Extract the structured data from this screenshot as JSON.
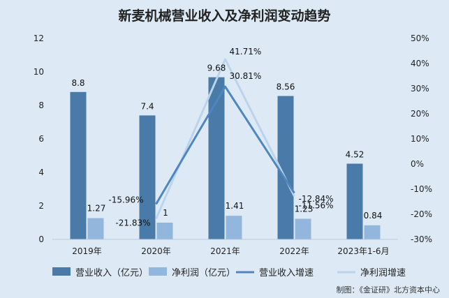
{
  "chart_data": {
    "type": "bar",
    "title": "新麦机械营业收入及净利润变动趋势",
    "categories": [
      "2019年",
      "2020年",
      "2021年",
      "2022年",
      "2023年1-6月"
    ],
    "y_left": {
      "ylim": [
        0,
        12
      ],
      "ticks": [
        "0",
        "2",
        "4",
        "6",
        "8",
        "10",
        "12"
      ]
    },
    "y_right": {
      "ylim": [
        -30,
        50
      ],
      "ticks": [
        "-30%",
        "-20%",
        "-10%",
        "0%",
        "10%",
        "20%",
        "30%",
        "40%",
        "50%"
      ]
    },
    "series": [
      {
        "name": "营业收入（亿元）",
        "kind": "bar",
        "axis": "left",
        "color": "#4a7aa8",
        "values": [
          8.8,
          7.4,
          9.68,
          8.56,
          4.52
        ],
        "labels": [
          "8.8",
          "7.4",
          "9.68",
          "8.56",
          "4.52"
        ]
      },
      {
        "name": "净利润（亿元）",
        "kind": "bar",
        "axis": "left",
        "color": "#93b6dd",
        "values": [
          1.27,
          1,
          1.41,
          1.23,
          0.84
        ],
        "labels": [
          "1.27",
          "1",
          "1.41",
          "1.23",
          "0.84"
        ]
      },
      {
        "name": "营业收入增速",
        "kind": "line",
        "axis": "right",
        "color": "#4f86c0",
        "values": [
          null,
          -15.96,
          30.81,
          -11.56,
          null
        ],
        "labels": [
          "",
          "-15.96%",
          "30.81%",
          "-11.56%",
          ""
        ]
      },
      {
        "name": "净利润增速",
        "kind": "line",
        "axis": "right",
        "color": "#bcd3ec",
        "values": [
          null,
          -21.83,
          41.71,
          -12.84,
          null
        ],
        "labels": [
          "",
          "-21.83%",
          "41.71%",
          "-12.84%",
          ""
        ]
      }
    ],
    "grid": false,
    "legend": "bottom"
  },
  "source": "制图：《金证研》北方资本中心"
}
